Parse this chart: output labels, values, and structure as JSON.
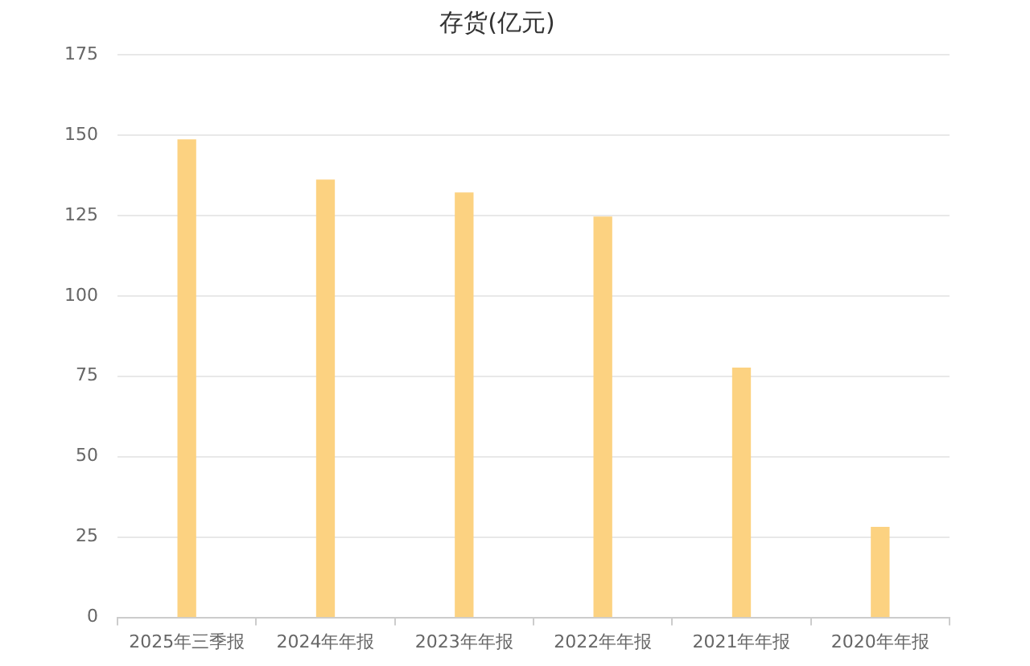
{
  "chart_data": {
    "type": "bar",
    "title": "存货(亿元)",
    "categories": [
      "2025年三季报",
      "2024年年报",
      "2023年年报",
      "2022年年报",
      "2021年年报",
      "2020年年报"
    ],
    "values": [
      148.5,
      136,
      132,
      124.5,
      77.5,
      28
    ],
    "color": "#fcd281",
    "ylim": [
      0,
      175
    ],
    "yticks": [
      0,
      25,
      50,
      75,
      100,
      125,
      150,
      175
    ],
    "grid": "y",
    "legend": false
  }
}
